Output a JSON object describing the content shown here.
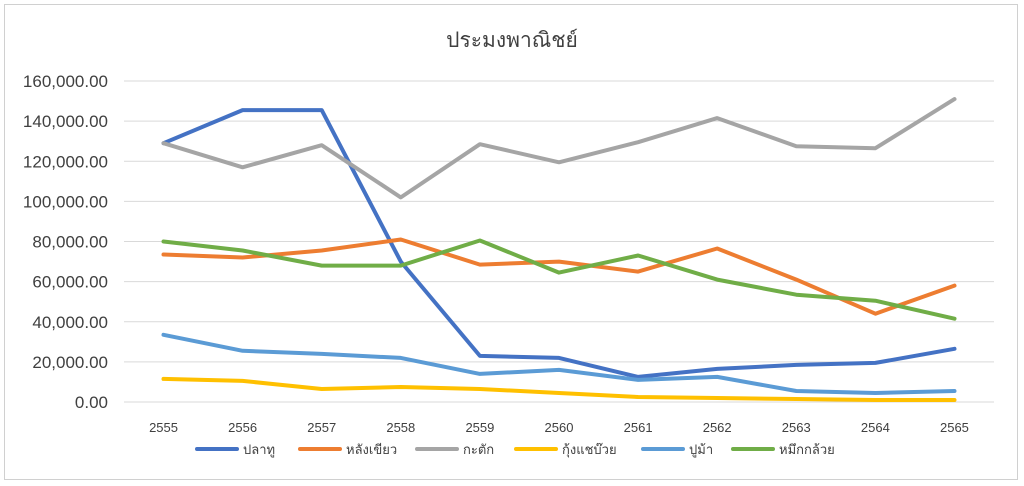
{
  "chart_data": {
    "type": "line",
    "title": "ประมงพาณิชย์",
    "xlabel": "",
    "ylabel": "",
    "x": [
      "2555",
      "2556",
      "2557",
      "2558",
      "2559",
      "2560",
      "2561",
      "2562",
      "2563",
      "2564",
      "2565"
    ],
    "ylim": [
      0,
      160000
    ],
    "yticks": [
      "0.00",
      "20,000.00",
      "40,000.00",
      "60,000.00",
      "80,000.00",
      "100,000.00",
      "120,000.00",
      "140,000.00",
      "160,000.00"
    ],
    "grid": true,
    "legend_position": "bottom",
    "series": [
      {
        "name": "ปลาทู",
        "color": "#4472c4",
        "values": [
          129000,
          145500,
          145500,
          70000,
          23000,
          22000,
          12500,
          16500,
          18500,
          19500,
          26500
        ]
      },
      {
        "name": "หลังเขียว",
        "color": "#ed7d31",
        "values": [
          73500,
          72000,
          75500,
          81000,
          68500,
          70000,
          65000,
          76500,
          61000,
          44000,
          58000
        ]
      },
      {
        "name": "กะตัก",
        "color": "#a5a5a5",
        "values": [
          129000,
          117000,
          128000,
          102000,
          128500,
          119500,
          129500,
          141500,
          127500,
          126500,
          151000
        ]
      },
      {
        "name": "กุ้งแชบ๊วย",
        "color": "#ffc000",
        "values": [
          11500,
          10500,
          6500,
          7500,
          6500,
          4500,
          2500,
          2000,
          1500,
          1000,
          1000
        ]
      },
      {
        "name": "ปูม้า",
        "color": "#5b9bd5",
        "values": [
          33500,
          25500,
          24000,
          22000,
          14000,
          16000,
          11000,
          12500,
          5500,
          4500,
          5500
        ]
      },
      {
        "name": "หมึกกล้วย",
        "color": "#70ad47",
        "values": [
          80000,
          75500,
          68000,
          68000,
          80500,
          64500,
          73000,
          61000,
          53500,
          50500,
          41500
        ]
      }
    ]
  }
}
